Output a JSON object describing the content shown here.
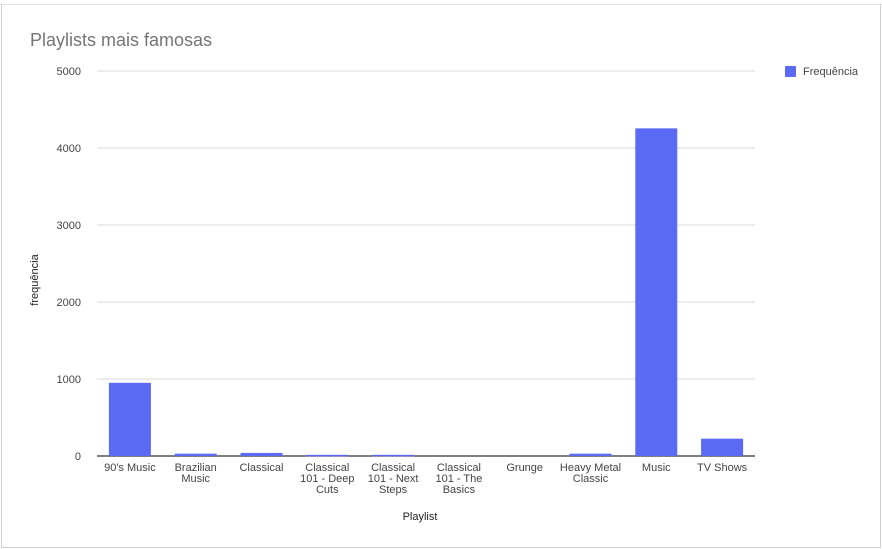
{
  "chart_data": {
    "type": "bar",
    "title": "Playlists mais famosas",
    "xlabel": "Playlist",
    "ylabel": "frequência",
    "ylim": [
      0,
      5000
    ],
    "yticks": [
      0,
      1000,
      2000,
      3000,
      4000,
      5000
    ],
    "categories": [
      [
        "90's Music"
      ],
      [
        "Brazilian",
        "Music"
      ],
      [
        "Classical"
      ],
      [
        "Classical",
        "101 - Deep",
        "Cuts"
      ],
      [
        "Classical",
        "101 - Next",
        "Steps"
      ],
      [
        "Classical",
        "101 - The",
        "Basics"
      ],
      [
        "Grunge"
      ],
      [
        "Heavy Metal",
        "Classic"
      ],
      [
        "Music"
      ],
      [
        "TV Shows"
      ]
    ],
    "series": [
      {
        "name": "Frequência",
        "color": "#5b6af5",
        "values": [
          950,
          30,
          40,
          15,
          15,
          0,
          0,
          30,
          4255,
          225
        ]
      }
    ],
    "grid": true,
    "legend_position": "right"
  }
}
